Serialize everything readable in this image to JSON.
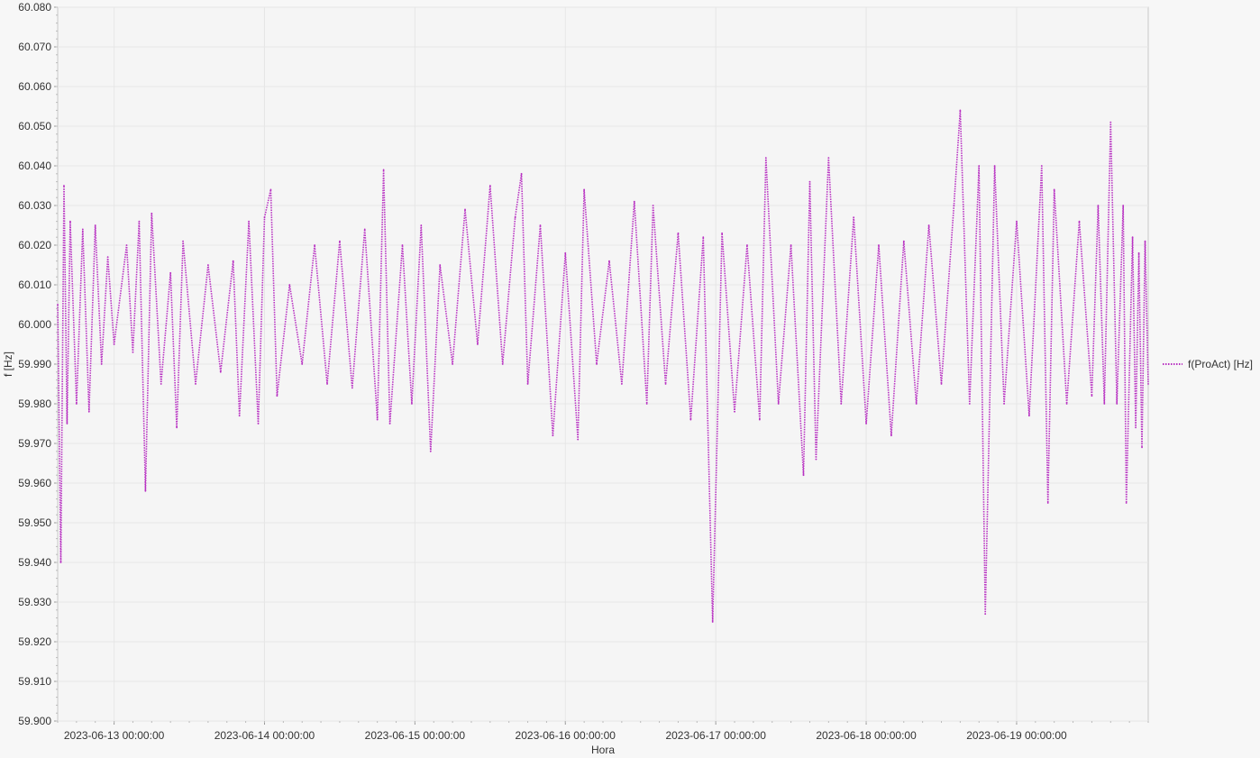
{
  "chart_data": {
    "type": "line",
    "title": "",
    "xlabel": "Hora",
    "ylabel": "f [Hz]",
    "ylim": [
      59.9,
      60.08
    ],
    "yticks": [
      "60.080",
      "60.070",
      "60.060",
      "60.050",
      "60.040",
      "60.030",
      "60.020",
      "60.010",
      "60.000",
      "59.990",
      "59.980",
      "59.970",
      "59.960",
      "59.950",
      "59.940",
      "59.930",
      "59.920",
      "59.910",
      "59.900"
    ],
    "xlim": [
      "2023-06-12 15:00:00",
      "2023-06-19 21:00:00"
    ],
    "xticks": [
      "2023-06-13 00:00:00",
      "2023-06-14 00:00:00",
      "2023-06-15 00:00:00",
      "2023-06-16 00:00:00",
      "2023-06-17 00:00:00",
      "2023-06-18 00:00:00",
      "2023-06-19 00:00:00"
    ],
    "grid": true,
    "legend_position": "right",
    "series": [
      {
        "name": "f(ProAct) [Hz]",
        "color": "#b832c2",
        "line_style": "dotted",
        "points": [
          [
            "2023-06-12 15:00:00",
            60.005
          ],
          [
            "2023-06-12 15:30:00",
            59.94
          ],
          [
            "2023-06-12 16:00:00",
            60.035
          ],
          [
            "2023-06-12 16:30:00",
            59.975
          ],
          [
            "2023-06-12 17:00:00",
            60.026
          ],
          [
            "2023-06-12 18:00:00",
            59.98
          ],
          [
            "2023-06-12 19:00:00",
            60.024
          ],
          [
            "2023-06-12 20:00:00",
            59.978
          ],
          [
            "2023-06-12 21:00:00",
            60.025
          ],
          [
            "2023-06-12 22:00:00",
            59.99
          ],
          [
            "2023-06-12 23:00:00",
            60.017
          ],
          [
            "2023-06-13 00:00:00",
            59.995
          ],
          [
            "2023-06-13 02:00:00",
            60.02
          ],
          [
            "2023-06-13 03:00:00",
            59.993
          ],
          [
            "2023-06-13 04:00:00",
            60.026
          ],
          [
            "2023-06-13 05:00:00",
            59.958
          ],
          [
            "2023-06-13 06:00:00",
            60.028
          ],
          [
            "2023-06-13 07:30:00",
            59.985
          ],
          [
            "2023-06-13 09:00:00",
            60.013
          ],
          [
            "2023-06-13 10:00:00",
            59.974
          ],
          [
            "2023-06-13 11:00:00",
            60.021
          ],
          [
            "2023-06-13 13:00:00",
            59.985
          ],
          [
            "2023-06-13 15:00:00",
            60.015
          ],
          [
            "2023-06-13 17:00:00",
            59.988
          ],
          [
            "2023-06-13 19:00:00",
            60.016
          ],
          [
            "2023-06-13 20:00:00",
            59.977
          ],
          [
            "2023-06-13 21:30:00",
            60.026
          ],
          [
            "2023-06-13 23:00:00",
            59.975
          ],
          [
            "2023-06-14 00:00:00",
            60.027
          ],
          [
            "2023-06-14 01:00:00",
            60.034
          ],
          [
            "2023-06-14 02:00:00",
            59.982
          ],
          [
            "2023-06-14 04:00:00",
            60.01
          ],
          [
            "2023-06-14 06:00:00",
            59.99
          ],
          [
            "2023-06-14 08:00:00",
            60.02
          ],
          [
            "2023-06-14 10:00:00",
            59.985
          ],
          [
            "2023-06-14 12:00:00",
            60.021
          ],
          [
            "2023-06-14 14:00:00",
            59.984
          ],
          [
            "2023-06-14 16:00:00",
            60.024
          ],
          [
            "2023-06-14 18:00:00",
            59.976
          ],
          [
            "2023-06-14 19:00:00",
            60.039
          ],
          [
            "2023-06-14 20:00:00",
            59.975
          ],
          [
            "2023-06-14 22:00:00",
            60.02
          ],
          [
            "2023-06-14 23:30:00",
            59.98
          ],
          [
            "2023-06-15 01:00:00",
            60.025
          ],
          [
            "2023-06-15 02:30:00",
            59.968
          ],
          [
            "2023-06-15 04:00:00",
            60.015
          ],
          [
            "2023-06-15 06:00:00",
            59.99
          ],
          [
            "2023-06-15 08:00:00",
            60.029
          ],
          [
            "2023-06-15 10:00:00",
            59.995
          ],
          [
            "2023-06-15 12:00:00",
            60.035
          ],
          [
            "2023-06-15 14:00:00",
            59.99
          ],
          [
            "2023-06-15 16:00:00",
            60.027
          ],
          [
            "2023-06-15 17:00:00",
            60.038
          ],
          [
            "2023-06-15 18:00:00",
            59.985
          ],
          [
            "2023-06-15 20:00:00",
            60.025
          ],
          [
            "2023-06-15 22:00:00",
            59.972
          ],
          [
            "2023-06-16 00:00:00",
            60.018
          ],
          [
            "2023-06-16 02:00:00",
            59.971
          ],
          [
            "2023-06-16 03:00:00",
            60.034
          ],
          [
            "2023-06-16 05:00:00",
            59.99
          ],
          [
            "2023-06-16 07:00:00",
            60.016
          ],
          [
            "2023-06-16 09:00:00",
            59.985
          ],
          [
            "2023-06-16 11:00:00",
            60.031
          ],
          [
            "2023-06-16 13:00:00",
            59.98
          ],
          [
            "2023-06-16 14:00:00",
            60.03
          ],
          [
            "2023-06-16 16:00:00",
            59.985
          ],
          [
            "2023-06-16 18:00:00",
            60.023
          ],
          [
            "2023-06-16 20:00:00",
            59.976
          ],
          [
            "2023-06-16 22:00:00",
            60.022
          ],
          [
            "2023-06-16 23:30:00",
            59.925
          ],
          [
            "2023-06-17 01:00:00",
            60.023
          ],
          [
            "2023-06-17 03:00:00",
            59.978
          ],
          [
            "2023-06-17 05:00:00",
            60.02
          ],
          [
            "2023-06-17 07:00:00",
            59.976
          ],
          [
            "2023-06-17 08:00:00",
            60.042
          ],
          [
            "2023-06-17 10:00:00",
            59.98
          ],
          [
            "2023-06-17 12:00:00",
            60.02
          ],
          [
            "2023-06-17 14:00:00",
            59.962
          ],
          [
            "2023-06-17 15:00:00",
            60.036
          ],
          [
            "2023-06-17 16:00:00",
            59.966
          ],
          [
            "2023-06-17 18:00:00",
            60.042
          ],
          [
            "2023-06-17 20:00:00",
            59.98
          ],
          [
            "2023-06-17 22:00:00",
            60.027
          ],
          [
            "2023-06-18 00:00:00",
            59.975
          ],
          [
            "2023-06-18 02:00:00",
            60.02
          ],
          [
            "2023-06-18 04:00:00",
            59.972
          ],
          [
            "2023-06-18 06:00:00",
            60.021
          ],
          [
            "2023-06-18 08:00:00",
            59.98
          ],
          [
            "2023-06-18 10:00:00",
            60.025
          ],
          [
            "2023-06-18 12:00:00",
            59.985
          ],
          [
            "2023-06-18 14:00:00",
            60.03
          ],
          [
            "2023-06-18 15:00:00",
            60.054
          ],
          [
            "2023-06-18 16:30:00",
            59.98
          ],
          [
            "2023-06-18 18:00:00",
            60.04
          ],
          [
            "2023-06-18 19:00:00",
            59.927
          ],
          [
            "2023-06-18 20:30:00",
            60.04
          ],
          [
            "2023-06-18 22:00:00",
            59.98
          ],
          [
            "2023-06-19 00:00:00",
            60.026
          ],
          [
            "2023-06-19 02:00:00",
            59.977
          ],
          [
            "2023-06-19 04:00:00",
            60.04
          ],
          [
            "2023-06-19 05:00:00",
            59.955
          ],
          [
            "2023-06-19 06:00:00",
            60.034
          ],
          [
            "2023-06-19 08:00:00",
            59.98
          ],
          [
            "2023-06-19 10:00:00",
            60.026
          ],
          [
            "2023-06-19 12:00:00",
            59.982
          ],
          [
            "2023-06-19 13:00:00",
            60.03
          ],
          [
            "2023-06-19 14:00:00",
            59.98
          ],
          [
            "2023-06-19 15:00:00",
            60.051
          ],
          [
            "2023-06-19 16:00:00",
            59.98
          ],
          [
            "2023-06-19 17:00:00",
            60.03
          ],
          [
            "2023-06-19 17:30:00",
            59.955
          ],
          [
            "2023-06-19 18:30:00",
            60.022
          ],
          [
            "2023-06-19 19:00:00",
            59.974
          ],
          [
            "2023-06-19 19:30:00",
            60.018
          ],
          [
            "2023-06-19 20:00:00",
            59.969
          ],
          [
            "2023-06-19 20:30:00",
            60.021
          ],
          [
            "2023-06-19 21:00:00",
            59.985
          ]
        ]
      }
    ]
  }
}
